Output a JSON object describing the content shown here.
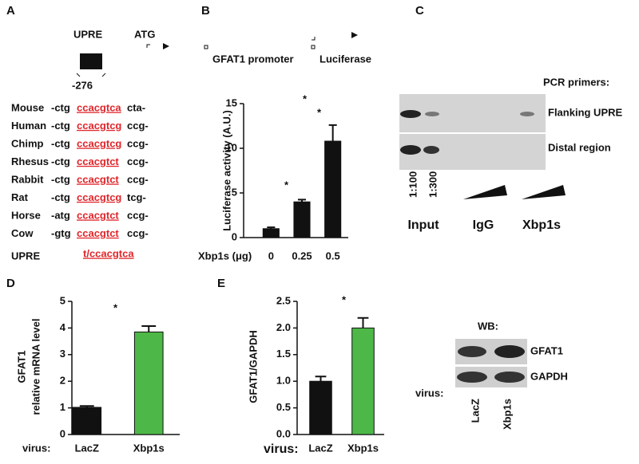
{
  "panel_labels": [
    "A",
    "B",
    "C",
    "D",
    "E"
  ],
  "panel_a": {
    "upre": "UPRE",
    "atg": "ATG",
    "position": "-276",
    "promoter": "GFAT1 promoter",
    "reporter": "Luciferase",
    "rows": [
      {
        "species": "Mouse",
        "left": "-ctg",
        "site": "ccacgtca",
        "right": "cta-"
      },
      {
        "species": "Human",
        "left": "-ctg",
        "site": "ccacgtcg",
        "right": "ccg-"
      },
      {
        "species": "Chimp",
        "left": "-ctg",
        "site": "ccacgtcg",
        "right": "ccg-"
      },
      {
        "species": "Rhesus",
        "left": "-ctg",
        "site": "ccacgtct",
        "right": "ccg-"
      },
      {
        "species": "Rabbit",
        "left": "-ctg",
        "site": "ccacgtct",
        "right": "ccg-"
      },
      {
        "species": "Rat",
        "left": "-ctg",
        "site": "ccacgtcg",
        "right": "tcg-"
      },
      {
        "species": "Horse",
        "left": "-atg",
        "site": "ccacgtct",
        "right": "ccg-"
      },
      {
        "species": "Cow",
        "left": "-gtg",
        "site": "ccacgtct",
        "right": "ccg-"
      }
    ],
    "consensus_label": "UPRE",
    "consensus": "t/ccacgtca"
  },
  "panel_c": {
    "primers_title": "PCR primers:",
    "rows": [
      "Flanking UPRE",
      "Distal region"
    ],
    "dilutions": [
      "1:100",
      "1:300"
    ],
    "groups": [
      "Input",
      "IgG",
      "Xbp1s"
    ]
  },
  "blot": {
    "title": "WB:",
    "rows": [
      "GFAT1",
      "GAPDH"
    ],
    "virus_label": "virus:",
    "lanes": [
      "LacZ",
      "Xbp1s"
    ]
  },
  "chart_data": [
    {
      "type": "bar",
      "y_label": "Luciferase activity (A.U.)",
      "x_label": "Xbp1s (μg)",
      "categories": [
        "0",
        "0.25",
        "0.5"
      ],
      "values": [
        1.0,
        4.0,
        10.8
      ],
      "errors": [
        0.15,
        0.25,
        1.8
      ],
      "colors": [
        "#111111",
        "#111111",
        "#111111"
      ],
      "ylim": [
        0,
        15
      ],
      "yticks": [
        0,
        5,
        10,
        15
      ],
      "annotations": [
        "*",
        "*",
        "*"
      ]
    },
    {
      "type": "bar",
      "y_label": [
        "GFAT1",
        "relative mRNA level"
      ],
      "x_label": "virus:",
      "categories": [
        "LacZ",
        "Xbp1s"
      ],
      "values": [
        1.02,
        3.85
      ],
      "errors": [
        0.05,
        0.22
      ],
      "colors": [
        "#111111",
        "#4db848"
      ],
      "ylim": [
        0,
        5
      ],
      "yticks": [
        0,
        1,
        2,
        3,
        4,
        5
      ],
      "annotations": [
        "*"
      ]
    },
    {
      "type": "bar",
      "y_label": "GFAT1/GAPDH",
      "x_label": "virus:",
      "categories": [
        "LacZ",
        "Xbp1s"
      ],
      "values": [
        1.0,
        2.0
      ],
      "errors": [
        0.09,
        0.19
      ],
      "colors": [
        "#111111",
        "#4db848"
      ],
      "ylim": [
        0,
        2.5
      ],
      "yticks": [
        {
          "value": 0,
          "label": "0.0"
        },
        0.5,
        {
          "value": 1,
          "label": "1.0"
        },
        1.5,
        {
          "value": 2,
          "label": "2.0"
        },
        2.5
      ],
      "annotations": [
        "*"
      ]
    }
  ]
}
